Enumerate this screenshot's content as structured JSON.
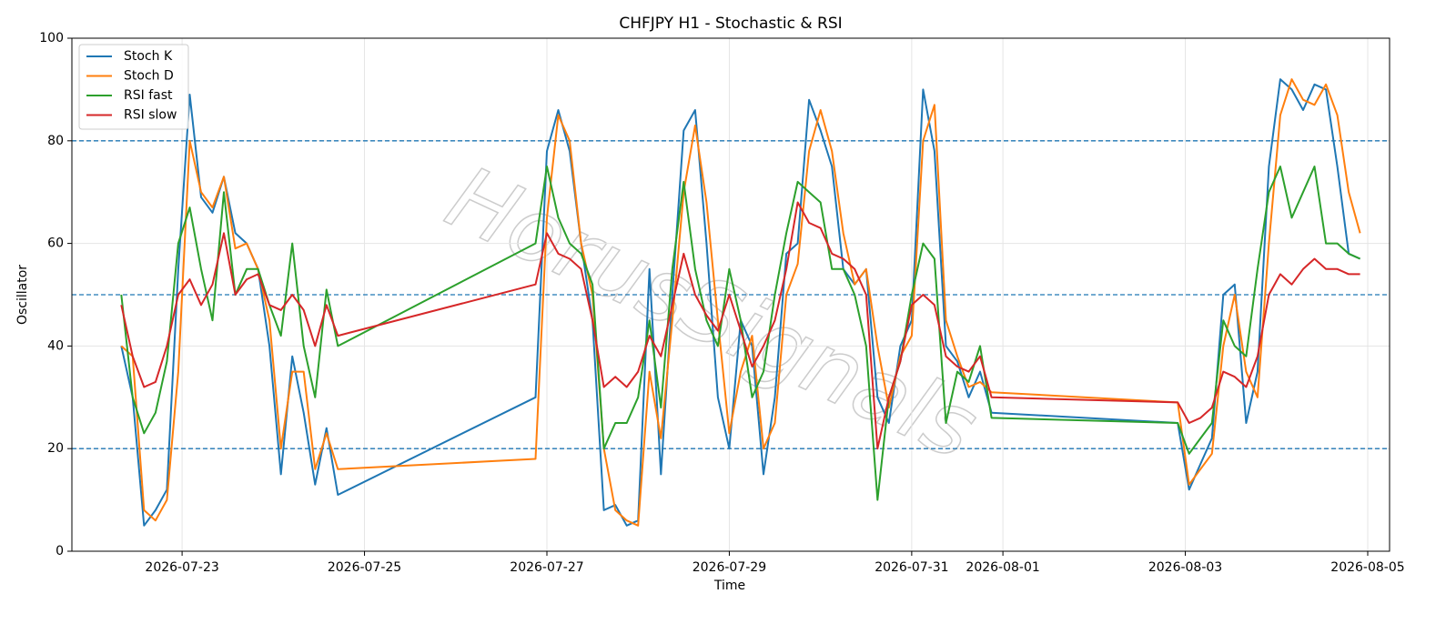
{
  "chart_data": {
    "type": "line",
    "title": "CHFJPY H1 - Stochastic & RSI",
    "xlabel": "Time",
    "ylabel": "Oscillator",
    "watermark": "HorusSignals",
    "x": [
      "2026-07-22T08:00",
      "2026-07-22T11:00",
      "2026-07-22T14:00",
      "2026-07-22T17:00",
      "2026-07-22T20:00",
      "2026-07-22T23:00",
      "2026-07-23T02:00",
      "2026-07-23T05:00",
      "2026-07-23T08:00",
      "2026-07-23T11:00",
      "2026-07-23T14:00",
      "2026-07-23T17:00",
      "2026-07-23T20:00",
      "2026-07-23T23:00",
      "2026-07-24T02:00",
      "2026-07-24T05:00",
      "2026-07-24T08:00",
      "2026-07-24T11:00",
      "2026-07-24T14:00",
      "2026-07-24T17:00",
      "2026-07-26T21:00",
      "2026-07-27T00:00",
      "2026-07-27T03:00",
      "2026-07-27T06:00",
      "2026-07-27T09:00",
      "2026-07-27T12:00",
      "2026-07-27T15:00",
      "2026-07-27T18:00",
      "2026-07-27T21:00",
      "2026-07-28T00:00",
      "2026-07-28T03:00",
      "2026-07-28T06:00",
      "2026-07-28T09:00",
      "2026-07-28T12:00",
      "2026-07-28T15:00",
      "2026-07-28T18:00",
      "2026-07-28T21:00",
      "2026-07-29T00:00",
      "2026-07-29T03:00",
      "2026-07-29T06:00",
      "2026-07-29T09:00",
      "2026-07-29T12:00",
      "2026-07-29T15:00",
      "2026-07-29T18:00",
      "2026-07-29T21:00",
      "2026-07-30T00:00",
      "2026-07-30T03:00",
      "2026-07-30T06:00",
      "2026-07-30T09:00",
      "2026-07-30T12:00",
      "2026-07-30T15:00",
      "2026-07-30T18:00",
      "2026-07-30T21:00",
      "2026-07-31T00:00",
      "2026-07-31T03:00",
      "2026-07-31T06:00",
      "2026-07-31T09:00",
      "2026-07-31T12:00",
      "2026-07-31T15:00",
      "2026-07-31T18:00",
      "2026-07-31T21:00",
      "2026-08-02T22:00",
      "2026-08-03T01:00",
      "2026-08-03T04:00",
      "2026-08-03T07:00",
      "2026-08-03T10:00",
      "2026-08-03T13:00",
      "2026-08-03T16:00",
      "2026-08-03T19:00",
      "2026-08-03T22:00",
      "2026-08-04T01:00",
      "2026-08-04T04:00",
      "2026-08-04T07:00",
      "2026-08-04T10:00",
      "2026-08-04T13:00",
      "2026-08-04T16:00",
      "2026-08-04T19:00",
      "2026-08-04T22:00"
    ],
    "series": [
      {
        "name": "Stoch K",
        "color": "#1f77b4",
        "values": [
          40,
          30,
          5,
          8,
          12,
          55,
          89,
          69,
          66,
          73,
          62,
          60,
          55,
          40,
          15,
          38,
          27,
          13,
          24,
          11,
          30,
          78,
          86,
          78,
          60,
          45,
          8,
          9,
          5,
          6,
          55,
          15,
          50,
          82,
          86,
          60,
          30,
          20,
          45,
          40,
          15,
          30,
          58,
          60,
          88,
          82,
          75,
          55,
          52,
          55,
          30,
          25,
          40,
          45,
          90,
          78,
          40,
          37,
          30,
          35,
          27,
          25,
          12,
          17,
          22,
          50,
          52,
          25,
          35,
          75,
          92,
          90,
          86,
          91,
          90,
          75,
          58,
          57
        ]
      },
      {
        "name": "Stoch D",
        "color": "#ff7f0e",
        "values": [
          40,
          38,
          8,
          6,
          10,
          35,
          80,
          70,
          67,
          73,
          59,
          60,
          55,
          45,
          20,
          35,
          35,
          16,
          23,
          16,
          18,
          65,
          85,
          80,
          60,
          50,
          20,
          8,
          6,
          5,
          35,
          22,
          45,
          70,
          83,
          68,
          45,
          23,
          35,
          42,
          20,
          25,
          50,
          56,
          78,
          86,
          78,
          62,
          52,
          55,
          40,
          28,
          38,
          42,
          80,
          87,
          45,
          38,
          32,
          33,
          31,
          29,
          13,
          16,
          19,
          40,
          50,
          35,
          30,
          60,
          85,
          92,
          88,
          87,
          91,
          85,
          70,
          62
        ]
      },
      {
        "name": "RSI fast",
        "color": "#2ca02c",
        "values": [
          50,
          30,
          23,
          27,
          37,
          60,
          67,
          55,
          45,
          70,
          50,
          55,
          55,
          48,
          42,
          60,
          40,
          30,
          51,
          40,
          60,
          75,
          65,
          60,
          58,
          52,
          20,
          25,
          25,
          30,
          45,
          28,
          55,
          72,
          55,
          45,
          40,
          55,
          45,
          30,
          35,
          50,
          62,
          72,
          70,
          68,
          55,
          55,
          50,
          40,
          10,
          30,
          37,
          50,
          60,
          57,
          25,
          35,
          33,
          40,
          26,
          25,
          19,
          22,
          25,
          45,
          40,
          38,
          55,
          70,
          75,
          65,
          70,
          75,
          60,
          60,
          58,
          57
        ]
      },
      {
        "name": "RSI slow",
        "color": "#d62728",
        "values": [
          48,
          38,
          32,
          33,
          40,
          50,
          53,
          48,
          52,
          62,
          50,
          53,
          54,
          48,
          47,
          50,
          47,
          40,
          48,
          42,
          52,
          62,
          58,
          57,
          55,
          45,
          32,
          34,
          32,
          35,
          42,
          38,
          48,
          58,
          50,
          46,
          43,
          50,
          43,
          36,
          40,
          45,
          55,
          68,
          64,
          63,
          58,
          57,
          55,
          50,
          20,
          30,
          37,
          48,
          50,
          48,
          38,
          36,
          35,
          38,
          30,
          29,
          25,
          26,
          28,
          35,
          34,
          32,
          38,
          50,
          54,
          52,
          55,
          57,
          55,
          55,
          54,
          54
        ]
      }
    ],
    "hlines": [
      20,
      50,
      80
    ],
    "hline_color": "#1f77b4",
    "xlim": [
      "2026-07-21T19:00",
      "2026-08-05T05:45"
    ],
    "xticks": [
      "2026-07-23",
      "2026-07-25",
      "2026-07-27",
      "2026-07-29",
      "2026-07-31",
      "2026-08-01",
      "2026-08-03",
      "2026-08-05"
    ],
    "ylim": [
      0,
      100
    ],
    "yticks": [
      0,
      20,
      40,
      60,
      80,
      100
    ],
    "grid": true,
    "legend": "upper left"
  }
}
